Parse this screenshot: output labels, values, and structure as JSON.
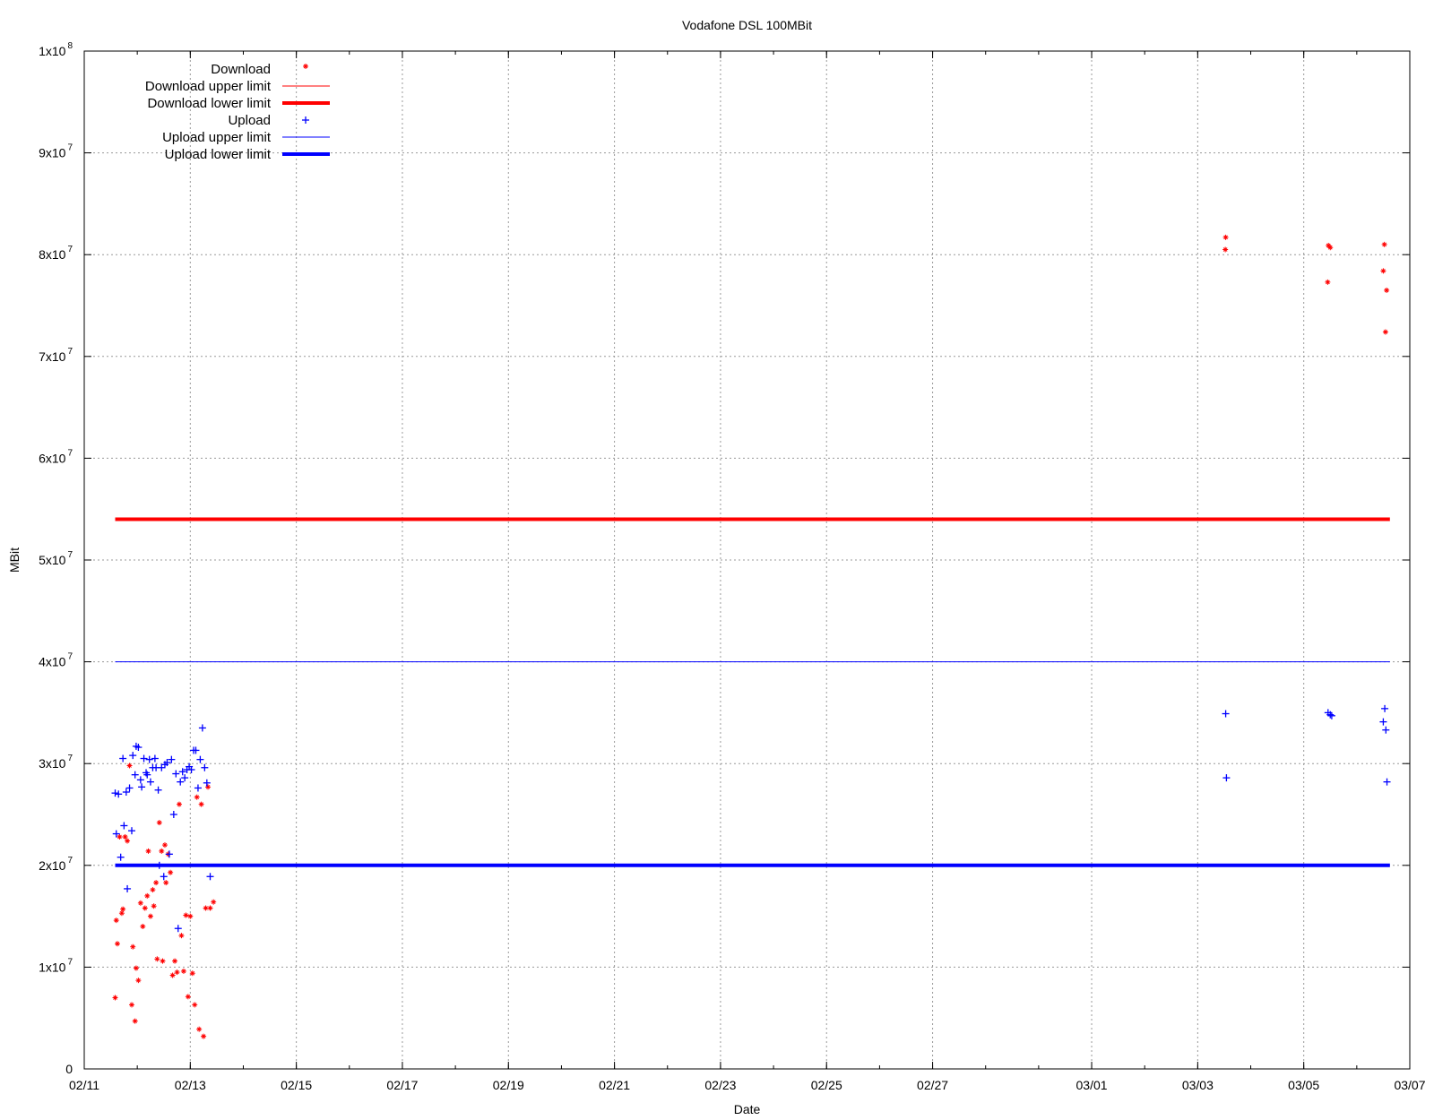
{
  "chart_data": {
    "type": "scatter",
    "title": "Vodafone DSL 100MBit",
    "xlabel": "Date",
    "ylabel": "MBit",
    "x_tick_labels": [
      "02/11",
      "02/13",
      "02/15",
      "02/17",
      "02/19",
      "02/21",
      "02/23",
      "02/25",
      "02/27",
      "03/01",
      "03/03",
      "03/05",
      "03/07"
    ],
    "x_range": [
      "02/11",
      "03/07"
    ],
    "y_tick_labels": [
      {
        "value": 0,
        "mantissa": "0",
        "exp": ""
      },
      {
        "value": 10000000,
        "mantissa": "1x10",
        "exp": "7"
      },
      {
        "value": 20000000,
        "mantissa": "2x10",
        "exp": "7"
      },
      {
        "value": 30000000,
        "mantissa": "3x10",
        "exp": "7"
      },
      {
        "value": 40000000,
        "mantissa": "4x10",
        "exp": "7"
      },
      {
        "value": 50000000,
        "mantissa": "5x10",
        "exp": "7"
      },
      {
        "value": 60000000,
        "mantissa": "6x10",
        "exp": "7"
      },
      {
        "value": 70000000,
        "mantissa": "7x10",
        "exp": "7"
      },
      {
        "value": 80000000,
        "mantissa": "8x10",
        "exp": "7"
      },
      {
        "value": 90000000,
        "mantissa": "9x10",
        "exp": "7"
      },
      {
        "value": 100000000,
        "mantissa": "1x10",
        "exp": "8"
      }
    ],
    "ylim": [
      0,
      100000000
    ],
    "grid": true,
    "legend_position": "top-left",
    "series": [
      {
        "name": "Download",
        "kind": "points",
        "marker": "star",
        "color": "#ff0000",
        "points": [
          [
            "02/11 14:00",
            7000000.0
          ],
          [
            "02/11 14:30",
            14600000.0
          ],
          [
            "02/11 15:00",
            12300000.0
          ],
          [
            "02/11 16:00",
            22800000.0
          ],
          [
            "02/11 17:00",
            15300000.0
          ],
          [
            "02/11 17:30",
            15700000.0
          ],
          [
            "02/11 18:30",
            22800000.0
          ],
          [
            "02/11 19:30",
            22400000.0
          ],
          [
            "02/11 20:30",
            29800000.0
          ],
          [
            "02/11 21:30",
            6300000.0
          ],
          [
            "02/11 22:00",
            12000000.0
          ],
          [
            "02/11 23:00",
            4700000.0
          ],
          [
            "02/11 23:30",
            9900000.0
          ],
          [
            "02/12 00:30",
            8700000.0
          ],
          [
            "02/12 01:30",
            16300000.0
          ],
          [
            "02/12 02:30",
            14000000.0
          ],
          [
            "02/12 03:30",
            15800000.0
          ],
          [
            "02/12 04:30",
            17000000.0
          ],
          [
            "02/12 05:00",
            21400000.0
          ],
          [
            "02/12 06:00",
            15000000.0
          ],
          [
            "02/12 07:00",
            17600000.0
          ],
          [
            "02/12 07:30",
            16000000.0
          ],
          [
            "02/12 08:30",
            18300000.0
          ],
          [
            "02/12 09:00",
            10800000.0
          ],
          [
            "02/12 10:00",
            24200000.0
          ],
          [
            "02/12 11:00",
            21400000.0
          ],
          [
            "02/12 11:30",
            10600000.0
          ],
          [
            "02/12 12:30",
            22000000.0
          ],
          [
            "02/12 13:00",
            18300000.0
          ],
          [
            "02/12 14:00",
            21100000.0
          ],
          [
            "02/12 15:00",
            19300000.0
          ],
          [
            "02/12 16:00",
            9200000.0
          ],
          [
            "02/12 17:00",
            10600000.0
          ],
          [
            "02/12 18:00",
            9500000.0
          ],
          [
            "02/12 19:00",
            26000000.0
          ],
          [
            "02/12 20:00",
            13100000.0
          ],
          [
            "02/12 21:00",
            9600000.0
          ],
          [
            "02/12 22:00",
            15100000.0
          ],
          [
            "02/12 23:00",
            7100000.0
          ],
          [
            "02/13 00:00",
            15000000.0
          ],
          [
            "02/13 01:00",
            9400000.0
          ],
          [
            "02/13 02:00",
            6300000.0
          ],
          [
            "02/13 03:00",
            26700000.0
          ],
          [
            "02/13 04:00",
            3900000.0
          ],
          [
            "02/13 05:00",
            26000000.0
          ],
          [
            "02/13 06:00",
            3200000.0
          ],
          [
            "02/13 07:00",
            15800000.0
          ],
          [
            "02/13 08:00",
            27700000.0
          ],
          [
            "02/13 09:00",
            15800000.0
          ],
          [
            "02/13 10:30",
            16400000.0
          ],
          [
            "03/03 12:30",
            80500000.0
          ],
          [
            "03/03 12:40",
            81700000.0
          ],
          [
            "03/05 10:50",
            77300000.0
          ],
          [
            "03/05 11:10",
            80900000.0
          ],
          [
            "03/05 12:00",
            80700000.0
          ],
          [
            "03/06 12:00",
            78400000.0
          ],
          [
            "03/06 12:30",
            81000000.0
          ],
          [
            "03/06 13:00",
            72400000.0
          ],
          [
            "03/06 13:30",
            76500000.0
          ]
        ]
      },
      {
        "name": "Download upper limit",
        "kind": "line",
        "color": "#ff0000",
        "width": 1,
        "x": [
          "02/11 14:00",
          "03/06 15:00"
        ],
        "y": [
          100000000,
          100000000
        ]
      },
      {
        "name": "Download lower limit",
        "kind": "line",
        "color": "#ff0000",
        "width": 4,
        "x": [
          "02/11 14:00",
          "03/06 15:00"
        ],
        "y": [
          54000000,
          54000000
        ]
      },
      {
        "name": "Upload",
        "kind": "points",
        "marker": "plus",
        "color": "#0000ff",
        "points": [
          [
            "02/11 14:00",
            27100000.0
          ],
          [
            "02/11 14:30",
            23100000.0
          ],
          [
            "02/11 15:30",
            27000000.0
          ],
          [
            "02/11 16:30",
            20800000.0
          ],
          [
            "02/11 17:30",
            30500000.0
          ],
          [
            "02/11 18:00",
            23900000.0
          ],
          [
            "02/11 19:00",
            27200000.0
          ],
          [
            "02/11 19:30",
            17700000.0
          ],
          [
            "02/11 20:30",
            27600000.0
          ],
          [
            "02/11 21:30",
            23400000.0
          ],
          [
            "02/11 22:00",
            30800000.0
          ],
          [
            "02/11 23:00",
            28900000.0
          ],
          [
            "02/11 23:30",
            31700000.0
          ],
          [
            "02/12 00:30",
            31600000.0
          ],
          [
            "02/12 01:30",
            28400000.0
          ],
          [
            "02/12 02:00",
            27700000.0
          ],
          [
            "02/12 03:00",
            30500000.0
          ],
          [
            "02/12 04:00",
            29100000.0
          ],
          [
            "02/12 04:30",
            28900000.0
          ],
          [
            "02/12 05:30",
            30400000.0
          ],
          [
            "02/12 06:00",
            28200000.0
          ],
          [
            "02/12 07:00",
            29600000.0
          ],
          [
            "02/12 08:00",
            30500000.0
          ],
          [
            "02/12 08:30",
            29600000.0
          ],
          [
            "02/12 09:30",
            27400000.0
          ],
          [
            "02/12 10:00",
            20000000.0
          ],
          [
            "02/12 11:00",
            29600000.0
          ],
          [
            "02/12 12:00",
            18900000.0
          ],
          [
            "02/12 12:30",
            29900000.0
          ],
          [
            "02/12 13:30",
            30100000.0
          ],
          [
            "02/12 14:30",
            21100000.0
          ],
          [
            "02/12 15:30",
            30400000.0
          ],
          [
            "02/12 16:30",
            25000000.0
          ],
          [
            "02/12 17:30",
            29000000.0
          ],
          [
            "02/12 18:30",
            13800000.0
          ],
          [
            "02/12 19:30",
            28200000.0
          ],
          [
            "02/12 20:30",
            29200000.0
          ],
          [
            "02/12 21:30",
            28600000.0
          ],
          [
            "02/12 22:30",
            29400000.0
          ],
          [
            "02/12 23:30",
            29700000.0
          ],
          [
            "02/13 00:30",
            29400000.0
          ],
          [
            "02/13 01:30",
            31300000.0
          ],
          [
            "02/13 02:30",
            31300000.0
          ],
          [
            "02/13 03:30",
            27600000.0
          ],
          [
            "02/13 04:30",
            30400000.0
          ],
          [
            "02/13 05:30",
            33500000.0
          ],
          [
            "02/13 06:30",
            29600000.0
          ],
          [
            "02/13 07:30",
            28100000.0
          ],
          [
            "02/13 09:00",
            18900000.0
          ],
          [
            "03/03 12:40",
            34900000.0
          ],
          [
            "03/03 13:00",
            28600000.0
          ],
          [
            "03/05 11:00",
            35000000.0
          ],
          [
            "03/05 12:00",
            34800000.0
          ],
          [
            "03/05 12:40",
            34700000.0
          ],
          [
            "03/06 12:00",
            34100000.0
          ],
          [
            "03/06 12:40",
            35400000.0
          ],
          [
            "03/06 13:10",
            33300000.0
          ],
          [
            "03/06 13:40",
            28200000.0
          ]
        ]
      },
      {
        "name": "Upload upper limit",
        "kind": "line",
        "color": "#0000ff",
        "width": 1,
        "x": [
          "02/11 14:00",
          "03/06 15:00"
        ],
        "y": [
          40000000,
          40000000
        ]
      },
      {
        "name": "Upload lower limit",
        "kind": "line",
        "color": "#0000ff",
        "width": 4,
        "x": [
          "02/11 14:00",
          "03/06 15:00"
        ],
        "y": [
          20000000,
          20000000
        ]
      }
    ]
  }
}
